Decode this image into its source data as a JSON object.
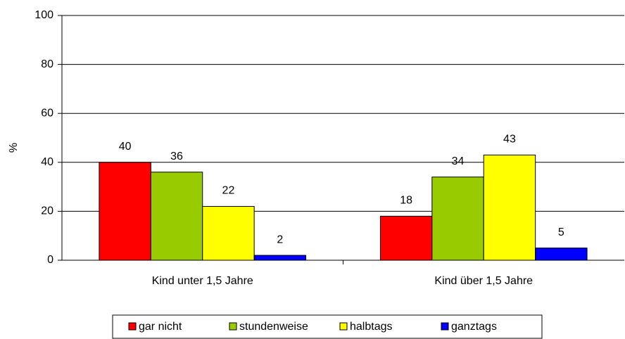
{
  "chart_data": {
    "type": "bar",
    "y_label": "%",
    "categories": [
      "Kind unter 1,5 Jahre",
      "Kind über 1,5 Jahre"
    ],
    "series": [
      {
        "name": "gar nicht",
        "color": "#ff0000",
        "values": [
          40,
          18
        ]
      },
      {
        "name": "stundenweise",
        "color": "#99cc00",
        "values": [
          36,
          34
        ]
      },
      {
        "name": "halbtags",
        "color": "#ffff00",
        "values": [
          22,
          43
        ]
      },
      {
        "name": "ganztags",
        "color": "#0000ff",
        "values": [
          2,
          5
        ]
      }
    ],
    "ylim": [
      0,
      100
    ],
    "yticks": [
      0,
      20,
      40,
      60,
      80,
      100
    ],
    "grid": true,
    "legend": "bottom"
  }
}
